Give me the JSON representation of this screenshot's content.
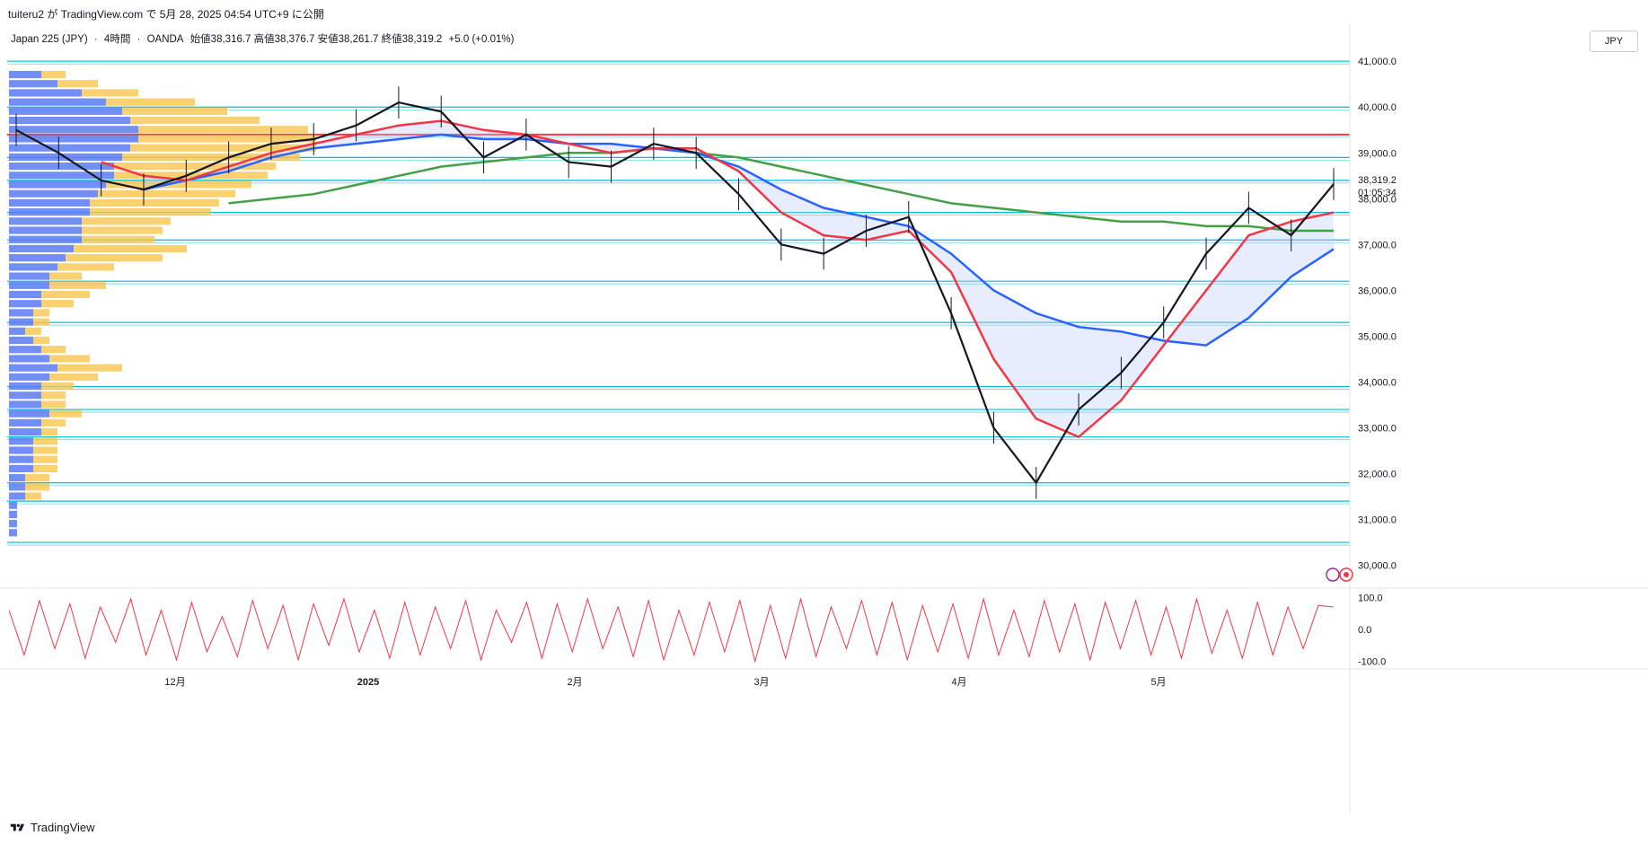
{
  "header": {
    "published_text": "tuiteru2 が TradingView.com で 5月 28, 2025 04:54 UTC+9 に公開",
    "symbol": "Japan 225 (JPY)",
    "interval": "4時間",
    "broker": "OANDA",
    "ohlc_text": "始値38,316.7 高値38,376.7 安値38,261.7 終値38,319.2",
    "change_text": "+5.0 (+0.01%)",
    "currency_button": "JPY"
  },
  "footer": {
    "brand": "TradingView"
  },
  "colors": {
    "candle": "#131722",
    "ma_fast": "#f23645",
    "ma_mid": "#2962ff",
    "ma_slow": "#43a047",
    "hline": "#00bcd4",
    "resistance": "#f23645",
    "vp_up": "#5b7bf5",
    "vp_down": "#f7c64c",
    "oscillator": "#f23645"
  },
  "chart_data": {
    "type": "line",
    "title": "Japan 225 (JPY) · 4時間 · OANDA",
    "xlabel": "",
    "ylabel": "",
    "x_tick_labels": [
      "12月",
      "2025",
      "2月",
      "3月",
      "4月",
      "5月"
    ],
    "y_tick_labels": [
      "41,000.0",
      "40,000.0",
      "39,000.0",
      "38,000.0",
      "37,000.0",
      "36,000.0",
      "35,000.0",
      "34,000.0",
      "33,000.0",
      "32,000.0",
      "31,000.0",
      "30,000.0"
    ],
    "ylim": [
      29600,
      41200
    ],
    "last_price_label": "38,319.2",
    "countdown_label": "01:05:34",
    "x": [
      "11/04",
      "11/11",
      "11/18",
      "11/25",
      "12/02",
      "12/09",
      "12/16",
      "12/23",
      "12/30",
      "01/06",
      "01/13",
      "01/20",
      "01/27",
      "02/03",
      "02/10",
      "02/17",
      "02/24",
      "03/03",
      "03/10",
      "03/17",
      "03/24",
      "03/31",
      "04/03",
      "04/07",
      "04/09",
      "04/14",
      "04/21",
      "04/28",
      "05/05",
      "05/12",
      "05/19",
      "05/27"
    ],
    "series": [
      {
        "values": [
          39500,
          39000,
          38400,
          38200,
          38500,
          38900,
          39200,
          39300,
          39600,
          40100,
          39900,
          38900,
          39400,
          38800,
          38700,
          39200,
          39000,
          38100,
          37000,
          36800,
          37300,
          37600,
          35500,
          33000,
          31800,
          33400,
          34200,
          35300,
          36800,
          37800,
          37200,
          38319
        ]
      },
      {
        "values": [
          null,
          null,
          38800,
          38500,
          38400,
          38700,
          39000,
          39200,
          39400,
          39600,
          39700,
          39500,
          39400,
          39200,
          39000,
          39100,
          39100,
          38600,
          37700,
          37200,
          37100,
          37300,
          36400,
          34500,
          33200,
          32800,
          33600,
          34800,
          36000,
          37200,
          37500,
          37700
        ]
      },
      {
        "values": [
          null,
          null,
          null,
          38200,
          38400,
          38600,
          38900,
          39100,
          39200,
          39300,
          39400,
          39300,
          39300,
          39200,
          39200,
          39100,
          39000,
          38700,
          38200,
          37800,
          37600,
          37400,
          36800,
          36000,
          35500,
          35200,
          35100,
          34900,
          34800,
          35400,
          36300,
          36900
        ]
      },
      {
        "values": [
          null,
          null,
          null,
          null,
          null,
          37900,
          38000,
          38100,
          38300,
          38500,
          38700,
          38800,
          38900,
          39000,
          39000,
          39100,
          39000,
          38900,
          38700,
          38500,
          38300,
          38100,
          37900,
          37800,
          37700,
          37600,
          37500,
          37500,
          37400,
          37400,
          37300,
          37300
        ]
      }
    ],
    "horizontal_levels": [
      41000,
      40000,
      39400,
      38900,
      38400,
      37700,
      37100,
      36200,
      35300,
      33900,
      33400,
      32800,
      31800,
      31400,
      30500
    ],
    "resistance_level": 39400,
    "volume_profile": [
      {
        "price": 40700,
        "up": 4,
        "down": 3
      },
      {
        "price": 40500,
        "up": 6,
        "down": 5
      },
      {
        "price": 40300,
        "up": 9,
        "down": 7
      },
      {
        "price": 40100,
        "up": 12,
        "down": 11
      },
      {
        "price": 39900,
        "up": 14,
        "down": 13
      },
      {
        "price": 39700,
        "up": 15,
        "down": 16
      },
      {
        "price": 39500,
        "up": 16,
        "down": 21
      },
      {
        "price": 39300,
        "up": 16,
        "down": 22
      },
      {
        "price": 39100,
        "up": 15,
        "down": 23
      },
      {
        "price": 38900,
        "up": 14,
        "down": 22
      },
      {
        "price": 38700,
        "up": 13,
        "down": 20
      },
      {
        "price": 38500,
        "up": 13,
        "down": 19
      },
      {
        "price": 38300,
        "up": 12,
        "down": 18
      },
      {
        "price": 38100,
        "up": 11,
        "down": 17
      },
      {
        "price": 37900,
        "up": 10,
        "down": 16
      },
      {
        "price": 37700,
        "up": 10,
        "down": 15
      },
      {
        "price": 37500,
        "up": 9,
        "down": 11
      },
      {
        "price": 37300,
        "up": 9,
        "down": 10
      },
      {
        "price": 37100,
        "up": 9,
        "down": 9
      },
      {
        "price": 36900,
        "up": 8,
        "down": 14
      },
      {
        "price": 36700,
        "up": 7,
        "down": 12
      },
      {
        "price": 36500,
        "up": 6,
        "down": 7
      },
      {
        "price": 36300,
        "up": 5,
        "down": 4
      },
      {
        "price": 36100,
        "up": 5,
        "down": 7
      },
      {
        "price": 35900,
        "up": 4,
        "down": 6
      },
      {
        "price": 35700,
        "up": 4,
        "down": 4
      },
      {
        "price": 35500,
        "up": 3,
        "down": 2
      },
      {
        "price": 35300,
        "up": 3,
        "down": 2
      },
      {
        "price": 35100,
        "up": 2,
        "down": 2
      },
      {
        "price": 34900,
        "up": 3,
        "down": 2
      },
      {
        "price": 34700,
        "up": 4,
        "down": 3
      },
      {
        "price": 34500,
        "up": 5,
        "down": 5
      },
      {
        "price": 34300,
        "up": 6,
        "down": 8
      },
      {
        "price": 34100,
        "up": 5,
        "down": 6
      },
      {
        "price": 33900,
        "up": 4,
        "down": 4
      },
      {
        "price": 33700,
        "up": 4,
        "down": 3
      },
      {
        "price": 33500,
        "up": 4,
        "down": 3
      },
      {
        "price": 33300,
        "up": 5,
        "down": 4
      },
      {
        "price": 33100,
        "up": 4,
        "down": 3
      },
      {
        "price": 32900,
        "up": 4,
        "down": 2
      },
      {
        "price": 32700,
        "up": 3,
        "down": 3
      },
      {
        "price": 32500,
        "up": 3,
        "down": 3
      },
      {
        "price": 32300,
        "up": 3,
        "down": 3
      },
      {
        "price": 32100,
        "up": 3,
        "down": 3
      },
      {
        "price": 31900,
        "up": 2,
        "down": 3
      },
      {
        "price": 31700,
        "up": 2,
        "down": 3
      },
      {
        "price": 31500,
        "up": 2,
        "down": 2
      },
      {
        "price": 31300,
        "up": 1,
        "down": 0
      },
      {
        "price": 31100,
        "up": 1,
        "down": 0
      },
      {
        "price": 30900,
        "up": 1,
        "down": 0
      },
      {
        "price": 30700,
        "up": 1,
        "down": 0
      }
    ],
    "oscillator": {
      "y_tick_labels": [
        "100.0",
        "0.0",
        "-100.0"
      ],
      "ylim": [
        -115,
        115
      ],
      "values": [
        60,
        -80,
        90,
        -60,
        80,
        -90,
        70,
        -40,
        95,
        -80,
        60,
        -95,
        85,
        -70,
        40,
        -85,
        90,
        -60,
        75,
        -95,
        80,
        -50,
        95,
        -70,
        60,
        -90,
        85,
        -80,
        70,
        -60,
        90,
        -95,
        60,
        -40,
        85,
        -90,
        80,
        -70,
        95,
        -60,
        70,
        -85,
        90,
        -95,
        60,
        -80,
        85,
        -70,
        90,
        -100,
        75,
        -90,
        95,
        -85,
        70,
        -60,
        90,
        -80,
        85,
        -95,
        75,
        -70,
        80,
        -90,
        95,
        -80,
        60,
        -85,
        90,
        -70,
        80,
        -95,
        85,
        -60,
        90,
        -80,
        70,
        -90,
        95,
        -75,
        60,
        -90,
        85,
        -80,
        70,
        -60,
        75,
        70
      ]
    }
  }
}
